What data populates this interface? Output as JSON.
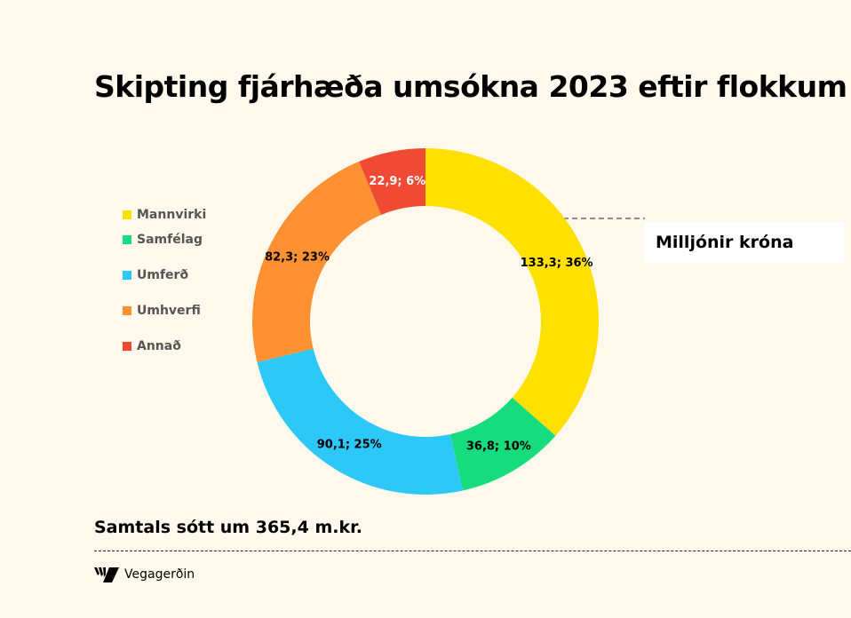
{
  "chart_data": {
    "type": "pie",
    "donut": true,
    "title": "Skipting fjárhæða umsókna 2023 eftir flokkum",
    "unit_label": "Milljónir króna",
    "categories": [
      "Mannvirki",
      "Samfélag",
      "Umferð",
      "Umhverfi",
      "Annað"
    ],
    "values": [
      133.3,
      36.8,
      90.1,
      82.3,
      22.9
    ],
    "data_labels": [
      "133,3; 36%",
      "36,8; 10%",
      "90,1; 25%",
      "82,3; 23%",
      "22,9; 6%"
    ],
    "colors": [
      "#FFE000",
      "#16DC7E",
      "#2EC8F8",
      "#FF9132",
      "#F04A35"
    ],
    "legend_position": "left"
  },
  "footer": {
    "total": "Samtals sótt um 365,4 m.kr.",
    "logo_text": "Vegagerðin"
  }
}
